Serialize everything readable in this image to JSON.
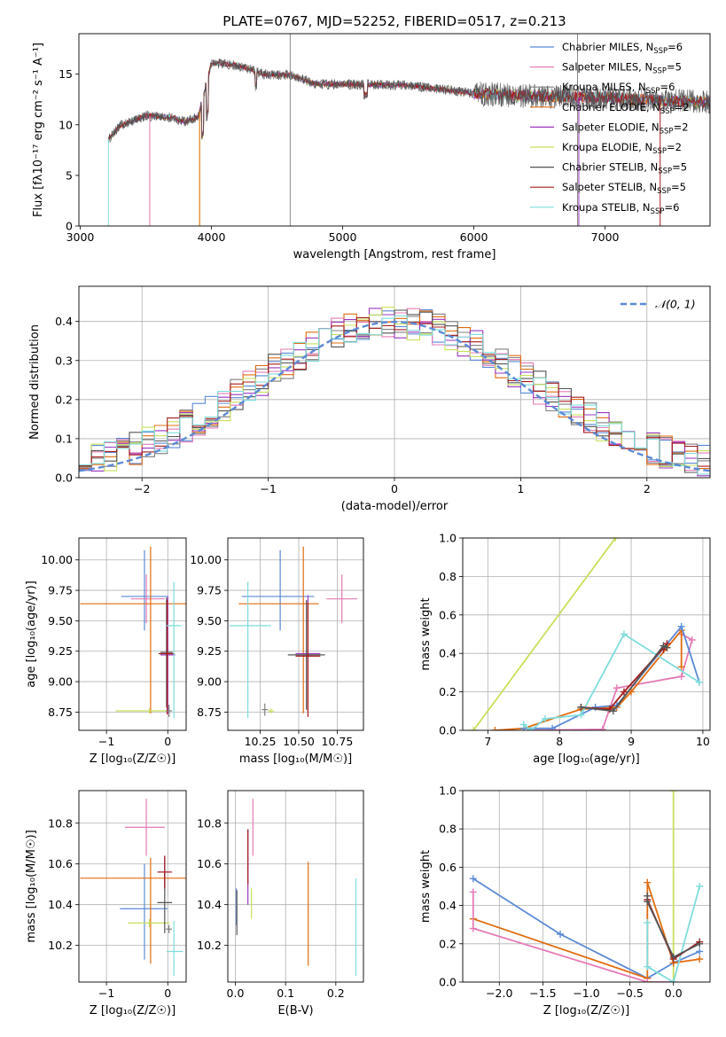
{
  "figure": {
    "title": "PLATE=0767, MJD=52252, FIBERID=0517, z=0.213"
  },
  "series_colors": {
    "Chabrier MILES": "#5b8ad6",
    "Salpeter MILES": "#e57ab6",
    "Kroupa MILES": "#7f7f7f",
    "Chabrier ELODIE": "#e06c10",
    "Salpeter ELODIE": "#9b36c0",
    "Kroupa ELODIE": "#c8e05a",
    "Chabrier STELIB": "#555555",
    "Salpeter STELIB": "#a61c1c",
    "Kroupa STELIB": "#7fdcdc"
  },
  "chart_data": [
    {
      "id": "spectrum",
      "type": "line",
      "title": "PLATE=0767, MJD=52252, FIBERID=0517, z=0.213",
      "xlabel": "wavelength [Angstrom, rest frame]",
      "ylabel": "Flux [fλ10⁻¹⁷ erg cm⁻² s⁻¹ A⁻¹]",
      "xlim": [
        2990,
        7800
      ],
      "ylim": [
        0,
        19
      ],
      "xticks": [
        3000,
        4000,
        5000,
        6000,
        7000
      ],
      "yticks": [
        0,
        5,
        10,
        15
      ],
      "grid": false,
      "legend_position": "top-right",
      "legend": [
        {
          "label": "Chabrier MILES, N",
          "sub": "SSP",
          "suffix": "=6",
          "color": "#5b8ad6"
        },
        {
          "label": "Salpeter MILES, N",
          "sub": "SSP",
          "suffix": "=5",
          "color": "#e57ab6"
        },
        {
          "label": "Kroupa MILES, N",
          "sub": "SSP",
          "suffix": "=6",
          "color": "#7f7f7f"
        },
        {
          "label": "Chabrier ELODIE, N",
          "sub": "SSP",
          "suffix": "=2",
          "color": "#e06c10"
        },
        {
          "label": "Salpeter ELODIE, N",
          "sub": "SSP",
          "suffix": "=2",
          "color": "#9b36c0"
        },
        {
          "label": "Kroupa ELODIE, N",
          "sub": "SSP",
          "suffix": "=2",
          "color": "#c8e05a"
        },
        {
          "label": "Chabrier STELIB, N",
          "sub": "SSP",
          "suffix": "=5",
          "color": "#555555"
        },
        {
          "label": "Salpeter STELIB, N",
          "sub": "SSP",
          "suffix": "=5",
          "color": "#a61c1c"
        },
        {
          "label": "Kroupa STELIB, N",
          "sub": "SSP",
          "suffix": "=6",
          "color": "#7fdcdc"
        }
      ],
      "continuum": [
        [
          3220,
          8.6
        ],
        [
          3300,
          9.9
        ],
        [
          3500,
          10.9
        ],
        [
          3700,
          10.7
        ],
        [
          3800,
          10.3
        ],
        [
          3900,
          10.8
        ],
        [
          4000,
          16.1
        ],
        [
          4200,
          15.9
        ],
        [
          4400,
          15.0
        ],
        [
          4600,
          14.9
        ],
        [
          4800,
          14.0
        ],
        [
          5000,
          14.0
        ],
        [
          5500,
          13.9
        ],
        [
          6000,
          13.1
        ],
        [
          6500,
          12.8
        ],
        [
          7000,
          12.7
        ],
        [
          7400,
          12.4
        ],
        [
          7800,
          12.2
        ]
      ],
      "edges": [
        {
          "color": "#7fdcdc",
          "x": 3215,
          "to": 0
        },
        {
          "color": "#e57ab6",
          "x": 3530,
          "to": 0
        },
        {
          "color": "#c8e05a",
          "x": 3910,
          "to": 0
        },
        {
          "color": "#e06c10",
          "x": 3910,
          "to": 0
        },
        {
          "color": "#a61c1c",
          "x": 7420,
          "to": 0
        },
        {
          "color": "#9b36c0",
          "x": 6800,
          "to": 0
        }
      ],
      "spikes": [
        {
          "x": 4600,
          "y": 19
        },
        {
          "x": 6790,
          "y": 19
        }
      ]
    },
    {
      "id": "residuals",
      "type": "line",
      "xlabel": "(data-model)/error",
      "ylabel": "Normed distribution",
      "xlim": [
        -2.5,
        2.5
      ],
      "ylim": [
        0,
        0.49
      ],
      "xticks": [
        -2,
        -1,
        0,
        1,
        2
      ],
      "yticks": [
        0.0,
        0.1,
        0.2,
        0.3,
        0.4
      ],
      "grid": true,
      "legend_position": "top-right",
      "legend": [
        {
          "label": "𝒩(0, 1)",
          "color": "#5b8ad6",
          "dashed": true
        }
      ],
      "bins": 50
    },
    {
      "id": "age-vs-Z",
      "type": "scatter",
      "xlabel": "Z [log₁₀(Z/Z☉)]",
      "ylabel": "age  [log₁₀(age/yr)]",
      "xlim": [
        -1.45,
        0.3
      ],
      "ylim": [
        8.6,
        10.18
      ],
      "xticks": [
        -1,
        0
      ],
      "yticks": [
        8.75,
        9.0,
        9.25,
        9.5,
        9.75,
        10.0
      ],
      "grid": true,
      "points": [
        {
          "color": "#5b8ad6",
          "x": -0.38,
          "y": 9.7,
          "xerr": [
            0.38,
            0.38
          ],
          "yerr": [
            0.28,
            0.38
          ]
        },
        {
          "color": "#e57ab6",
          "x": -0.35,
          "y": 9.68,
          "xerr": [
            0.25,
            0.3
          ],
          "yerr": [
            0.2,
            0.2
          ]
        },
        {
          "color": "#e06c10",
          "x": -0.28,
          "y": 9.64,
          "xerr": [
            1.15,
            1.55
          ],
          "yerr": [
            0.9,
            0.47
          ]
        },
        {
          "color": "#9b36c0",
          "x": 0.0,
          "y": 9.22,
          "xerr": [
            0.12,
            0.12
          ],
          "yerr": [
            0.48,
            0.48
          ]
        },
        {
          "color": "#c8e05a",
          "x": -0.3,
          "y": 8.76,
          "xerr": [
            0.55,
            0.33
          ],
          "yerr": [
            0.02,
            0.02
          ]
        },
        {
          "color": "#555555",
          "x": -0.02,
          "y": 9.24,
          "xerr": [
            0.1,
            0.1
          ],
          "yerr": [
            0.45,
            0.45
          ]
        },
        {
          "color": "#a61c1c",
          "x": -0.01,
          "y": 9.23,
          "xerr": [
            0.14,
            0.12
          ],
          "yerr": [
            0.5,
            0.44
          ]
        },
        {
          "color": "#7fdcdc",
          "x": 0.1,
          "y": 9.46,
          "xerr": [
            0.12,
            0.12
          ],
          "yerr": [
            0.76,
            0.36
          ]
        },
        {
          "color": "#7f7f7f",
          "x": 0.02,
          "y": 8.76,
          "xerr": [
            0.05,
            0.05
          ],
          "yerr": [
            0.05,
            0.05
          ]
        }
      ]
    },
    {
      "id": "age-vs-mass",
      "type": "scatter",
      "xlabel": "mass [log₁₀(M/M☉)]",
      "ylabel": "",
      "xlim": [
        10.04,
        10.92
      ],
      "ylim": [
        8.6,
        10.18
      ],
      "xticks": [
        10.25,
        10.5,
        10.75
      ],
      "yticks": [
        8.75,
        9.0,
        9.25,
        9.5,
        9.75,
        10.0
      ],
      "grid": true,
      "points": [
        {
          "color": "#5b8ad6",
          "x": 10.38,
          "y": 9.7,
          "xerr": [
            0.25,
            0.22
          ],
          "yerr": [
            0.28,
            0.38
          ]
        },
        {
          "color": "#e57ab6",
          "x": 10.78,
          "y": 9.68,
          "xerr": [
            0.1,
            0.1
          ],
          "yerr": [
            0.2,
            0.2
          ]
        },
        {
          "color": "#e06c10",
          "x": 10.53,
          "y": 9.64,
          "xerr": [
            0.42,
            0.1
          ],
          "yerr": [
            0.9,
            0.47
          ]
        },
        {
          "color": "#9b36c0",
          "x": 10.56,
          "y": 9.23,
          "xerr": [
            0.08,
            0.08
          ],
          "yerr": [
            0.48,
            0.48
          ]
        },
        {
          "color": "#c8e05a",
          "x": 10.32,
          "y": 8.76,
          "xerr": [
            0.02,
            0.02
          ],
          "yerr": [
            0.02,
            0.02
          ]
        },
        {
          "color": "#555555",
          "x": 10.55,
          "y": 9.22,
          "xerr": [
            0.12,
            0.12
          ],
          "yerr": [
            0.45,
            0.45
          ]
        },
        {
          "color": "#a61c1c",
          "x": 10.56,
          "y": 9.21,
          "xerr": [
            0.08,
            0.08
          ],
          "yerr": [
            0.5,
            0.44
          ]
        },
        {
          "color": "#7fdcdc",
          "x": 10.17,
          "y": 9.46,
          "xerr": [
            0.12,
            0.15
          ],
          "yerr": [
            0.76,
            0.36
          ]
        },
        {
          "color": "#7f7f7f",
          "x": 10.28,
          "y": 8.77,
          "xerr": [
            0.02,
            0.02
          ],
          "yerr": [
            0.05,
            0.05
          ]
        }
      ]
    },
    {
      "id": "weight-vs-age",
      "type": "line",
      "xlabel": "age  [log₁₀(age/yr)]",
      "ylabel": "mass weight",
      "xlim": [
        6.65,
        10.1
      ],
      "ylim": [
        0,
        1.0
      ],
      "xticks": [
        7,
        8,
        9,
        10
      ],
      "yticks": [
        0.0,
        0.2,
        0.4,
        0.6,
        0.8,
        1.0
      ],
      "grid": true,
      "series": [
        {
          "color": "#c8e05a",
          "x": [
            6.8,
            8.78
          ],
          "y": [
            0.0,
            1.0
          ]
        },
        {
          "color": "#e57ab6",
          "x": [
            7.6,
            8.6,
            8.8,
            9.7,
            9.85,
            9.7
          ],
          "y": [
            0.0,
            0.005,
            0.22,
            0.28,
            0.47,
            0.5
          ]
        },
        {
          "color": "#e06c10",
          "x": [
            7.1,
            7.5,
            8.3,
            8.8,
            9.0,
            9.5,
            9.7,
            9.7
          ],
          "y": [
            0.0,
            0.01,
            0.11,
            0.12,
            0.2,
            0.43,
            0.52,
            0.33
          ]
        },
        {
          "color": "#5b8ad6",
          "x": [
            7.5,
            7.9,
            8.5,
            8.8,
            9.5,
            9.7,
            9.95
          ],
          "y": [
            0.01,
            0.01,
            0.12,
            0.13,
            0.45,
            0.54,
            0.25
          ]
        },
        {
          "color": "#7fdcdc",
          "x": [
            7.5,
            7.6,
            7.8,
            8.3,
            8.9,
            9.95
          ],
          "y": [
            0.03,
            0.0,
            0.06,
            0.08,
            0.5,
            0.25
          ]
        },
        {
          "color": "#a61c1c",
          "x": [
            8.3,
            8.7,
            8.9,
            9.5,
            9.45
          ],
          "y": [
            0.12,
            0.11,
            0.2,
            0.45,
            0.42
          ]
        },
        {
          "color": "#555555",
          "x": [
            8.3,
            8.75,
            9.45,
            9.5
          ],
          "y": [
            0.12,
            0.1,
            0.44,
            0.43
          ]
        }
      ]
    },
    {
      "id": "mass-vs-Z",
      "type": "scatter",
      "xlabel": "Z [log₁₀(Z/Z☉)]",
      "ylabel": "mass [log₁₀(M/M☉)]",
      "xlim": [
        -1.45,
        0.3
      ],
      "ylim": [
        10.02,
        10.96
      ],
      "xticks": [
        -1,
        0
      ],
      "yticks": [
        10.2,
        10.4,
        10.6,
        10.8
      ],
      "grid": true,
      "points": [
        {
          "color": "#e57ab6",
          "x": -0.35,
          "y": 10.78,
          "xerr": [
            0.35,
            0.3
          ],
          "yerr": [
            0.14,
            0.14
          ]
        },
        {
          "color": "#5b8ad6",
          "x": -0.38,
          "y": 10.38,
          "xerr": [
            0.4,
            0.38
          ],
          "yerr": [
            0.25,
            0.22
          ]
        },
        {
          "color": "#e06c10",
          "x": -0.28,
          "y": 10.53,
          "xerr": [
            1.15,
            1.55
          ],
          "yerr": [
            0.42,
            0.1
          ]
        },
        {
          "color": "#9b36c0",
          "x": -0.05,
          "y": 10.56,
          "xerr": [
            0.1,
            0.1
          ],
          "yerr": [
            0.08,
            0.08
          ]
        },
        {
          "color": "#c8e05a",
          "x": -0.3,
          "y": 10.31,
          "xerr": [
            0.35,
            0.33
          ],
          "yerr": [
            0.02,
            0.02
          ]
        },
        {
          "color": "#555555",
          "x": -0.05,
          "y": 10.41,
          "xerr": [
            0.12,
            0.12
          ],
          "yerr": [
            0.15,
            0.15
          ]
        },
        {
          "color": "#a61c1c",
          "x": -0.05,
          "y": 10.56,
          "xerr": [
            0.12,
            0.12
          ],
          "yerr": [
            0.08,
            0.08
          ]
        },
        {
          "color": "#7fdcdc",
          "x": 0.1,
          "y": 10.17,
          "xerr": [
            0.12,
            0.15
          ],
          "yerr": [
            0.12,
            0.15
          ]
        },
        {
          "color": "#7f7f7f",
          "x": 0.02,
          "y": 10.28,
          "xerr": [
            0.05,
            0.05
          ],
          "yerr": [
            0.02,
            0.02
          ]
        }
      ]
    },
    {
      "id": "mass-vs-ebv",
      "type": "scatter",
      "xlabel": "E(B-V)",
      "ylabel": "",
      "xlim": [
        -0.015,
        0.255
      ],
      "ylim": [
        10.02,
        10.96
      ],
      "xticks": [
        0.0,
        0.1,
        0.2
      ],
      "yticks": [
        10.2,
        10.4,
        10.6,
        10.8
      ],
      "grid": true,
      "points": [
        {
          "color": "#e57ab6",
          "x": 0.035,
          "y": 10.78,
          "xerr": [
            0.0,
            0.0
          ],
          "yerr": [
            0.14,
            0.14
          ]
        },
        {
          "color": "#9b36c0",
          "x": 0.025,
          "y": 10.56,
          "xerr": [
            0.0,
            0.0
          ],
          "yerr": [
            0.16,
            0.21
          ]
        },
        {
          "color": "#a61c1c",
          "x": 0.025,
          "y": 10.62,
          "xerr": [
            0.0,
            0.0
          ],
          "yerr": [
            0.12,
            0.15
          ]
        },
        {
          "color": "#c8e05a",
          "x": 0.032,
          "y": 10.41,
          "xerr": [
            0.0,
            0.0
          ],
          "yerr": [
            0.08,
            0.07
          ]
        },
        {
          "color": "#5b8ad6",
          "x": 0.002,
          "y": 10.38,
          "xerr": [
            0.0,
            0.0
          ],
          "yerr": [
            0.08,
            0.1
          ]
        },
        {
          "color": "#555555",
          "x": 0.003,
          "y": 10.35,
          "xerr": [
            0.0,
            0.0
          ],
          "yerr": [
            0.1,
            0.12
          ]
        },
        {
          "color": "#e06c10",
          "x": 0.145,
          "y": 10.36,
          "xerr": [
            0.0,
            0.0
          ],
          "yerr": [
            0.26,
            0.25
          ]
        },
        {
          "color": "#7fdcdc",
          "x": 0.24,
          "y": 10.29,
          "xerr": [
            0.0,
            0.0
          ],
          "yerr": [
            0.24,
            0.24
          ]
        }
      ]
    },
    {
      "id": "weight-vs-Z",
      "type": "line",
      "xlabel": "Z [log₁₀(Z/Z☉)]",
      "ylabel": "mass weight",
      "xlim": [
        -2.42,
        0.42
      ],
      "ylim": [
        0,
        1.0
      ],
      "xticks": [
        -2.0,
        -1.5,
        -1.0,
        -0.5,
        0.0
      ],
      "yticks": [
        0.0,
        0.2,
        0.4,
        0.6,
        0.8,
        1.0
      ],
      "grid": true,
      "series": [
        {
          "color": "#c8e05a",
          "x": [
            0.0,
            0.0
          ],
          "y": [
            0.0,
            1.0
          ]
        },
        {
          "color": "#5b8ad6",
          "x": [
            -2.3,
            -1.3,
            -0.3,
            0.0,
            0.3
          ],
          "y": [
            0.54,
            0.25,
            0.02,
            0.1,
            0.16
          ]
        },
        {
          "color": "#e06c10",
          "x": [
            -2.3,
            -0.3,
            -0.3,
            0.0,
            0.3
          ],
          "y": [
            0.33,
            0.02,
            0.52,
            0.1,
            0.12
          ]
        },
        {
          "color": "#e57ab6",
          "x": [
            -2.3,
            -2.3,
            -0.3,
            0.0
          ],
          "y": [
            0.47,
            0.28,
            0.0,
            0.0
          ]
        },
        {
          "color": "#7fdcdc",
          "x": [
            -0.3,
            -0.3,
            0.0,
            0.3
          ],
          "y": [
            0.31,
            0.08,
            0.0,
            0.5
          ]
        },
        {
          "color": "#a61c1c",
          "x": [
            -0.3,
            0.0,
            0.3
          ],
          "y": [
            0.43,
            0.12,
            0.21
          ]
        },
        {
          "color": "#555555",
          "x": [
            -0.3,
            -0.3,
            0.0,
            0.3
          ],
          "y": [
            0.45,
            0.42,
            0.13,
            0.2
          ]
        }
      ]
    }
  ]
}
